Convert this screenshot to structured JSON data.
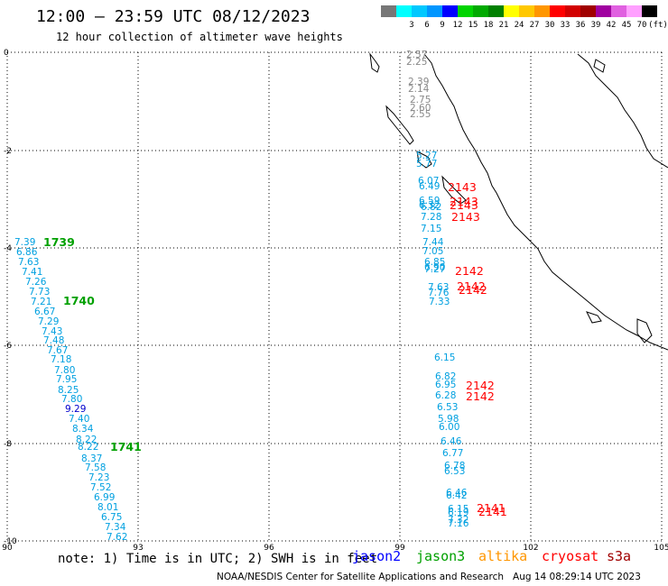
{
  "header": {
    "title": "12:00 — 23:59 UTC 08/12/2023",
    "subtitle": "12 hour collection of altimeter wave heights"
  },
  "colorbar": {
    "unit": "(ft)",
    "entries": [
      {
        "label": "",
        "color": "#777777"
      },
      {
        "label": "3",
        "color": "#00ffff"
      },
      {
        "label": "6",
        "color": "#00c8ff"
      },
      {
        "label": "9",
        "color": "#0096ff"
      },
      {
        "label": "12",
        "color": "#0000ff"
      },
      {
        "label": "15",
        "color": "#00d400"
      },
      {
        "label": "18",
        "color": "#00aa00"
      },
      {
        "label": "21",
        "color": "#008000"
      },
      {
        "label": "24",
        "color": "#ffff00"
      },
      {
        "label": "27",
        "color": "#ffc800"
      },
      {
        "label": "30",
        "color": "#ff9600"
      },
      {
        "label": "33",
        "color": "#ff0000"
      },
      {
        "label": "36",
        "color": "#d20000"
      },
      {
        "label": "39",
        "color": "#a00000"
      },
      {
        "label": "42",
        "color": "#a000a0"
      },
      {
        "label": "45",
        "color": "#e060e0"
      },
      {
        "label": "70",
        "color": "#ffa0ff"
      },
      {
        "label": "",
        "color": "#000000"
      }
    ]
  },
  "axes": {
    "lon_ticks": [
      "90",
      "93",
      "96",
      "99",
      "102",
      "105"
    ],
    "lat_ticks": [
      "0",
      "-2",
      "-4",
      "-6",
      "-8",
      "-10"
    ]
  },
  "wave_heights": {
    "track_gray": [
      "2.57",
      "2.25",
      "2.39",
      "2.14",
      "2.75",
      "2.60",
      "2.55"
    ],
    "track_east": [
      "5.27",
      "5.77",
      "6.07",
      "6.49",
      "6.59",
      "6.32",
      "6.82",
      "7.28",
      "7.15",
      "7.44",
      "7.05",
      "6.85",
      "6.90",
      "7.27",
      "7.63",
      "7.76",
      "7.33",
      "6.15",
      "6.82",
      "6.95",
      "6.28",
      "6.53",
      "5.98",
      "6.00",
      "6.46",
      "6.77",
      "6.78",
      "6.53",
      "6.46",
      "6.42",
      "6.15",
      "6.19",
      "7.32",
      "7.16"
    ],
    "track_west": [
      "7.39",
      "6.86",
      "7.63",
      "7.41",
      "7.26",
      "7.73",
      "7.21",
      "6.67",
      "7.29",
      "7.43",
      "7.48",
      "7.67",
      "7.18",
      "7.80",
      "7.95",
      "8.25",
      "7.80",
      "9.29",
      "7.40",
      "8.34",
      "8.22",
      "8.22",
      "8.37",
      "7.58",
      "7.23",
      "7.52",
      "6.99",
      "8.01",
      "6.75",
      "7.34",
      "7.62"
    ]
  },
  "time_labels": {
    "green": [
      "1739",
      "1740",
      "1741"
    ],
    "red": [
      "2143",
      "2143",
      "2143",
      "2143",
      "2142",
      "2142",
      "2142",
      "2142",
      "2142",
      "2141",
      "2141"
    ]
  },
  "footer": {
    "note": "note: 1) Time is in UTC; 2) SWH is in feet",
    "satellites": [
      {
        "name": "jason2",
        "color": "#0000ff"
      },
      {
        "name": "jason3",
        "color": "#00a000"
      },
      {
        "name": "altika",
        "color": "#ff9600"
      },
      {
        "name": "cryosat",
        "color": "#ff0000"
      },
      {
        "name": "s3a",
        "color": "#a00000"
      }
    ],
    "credit": "NOAA/NESDIS Center for Satellite Applications and Research   Aug 14 08:29:14 UTC 2023"
  }
}
